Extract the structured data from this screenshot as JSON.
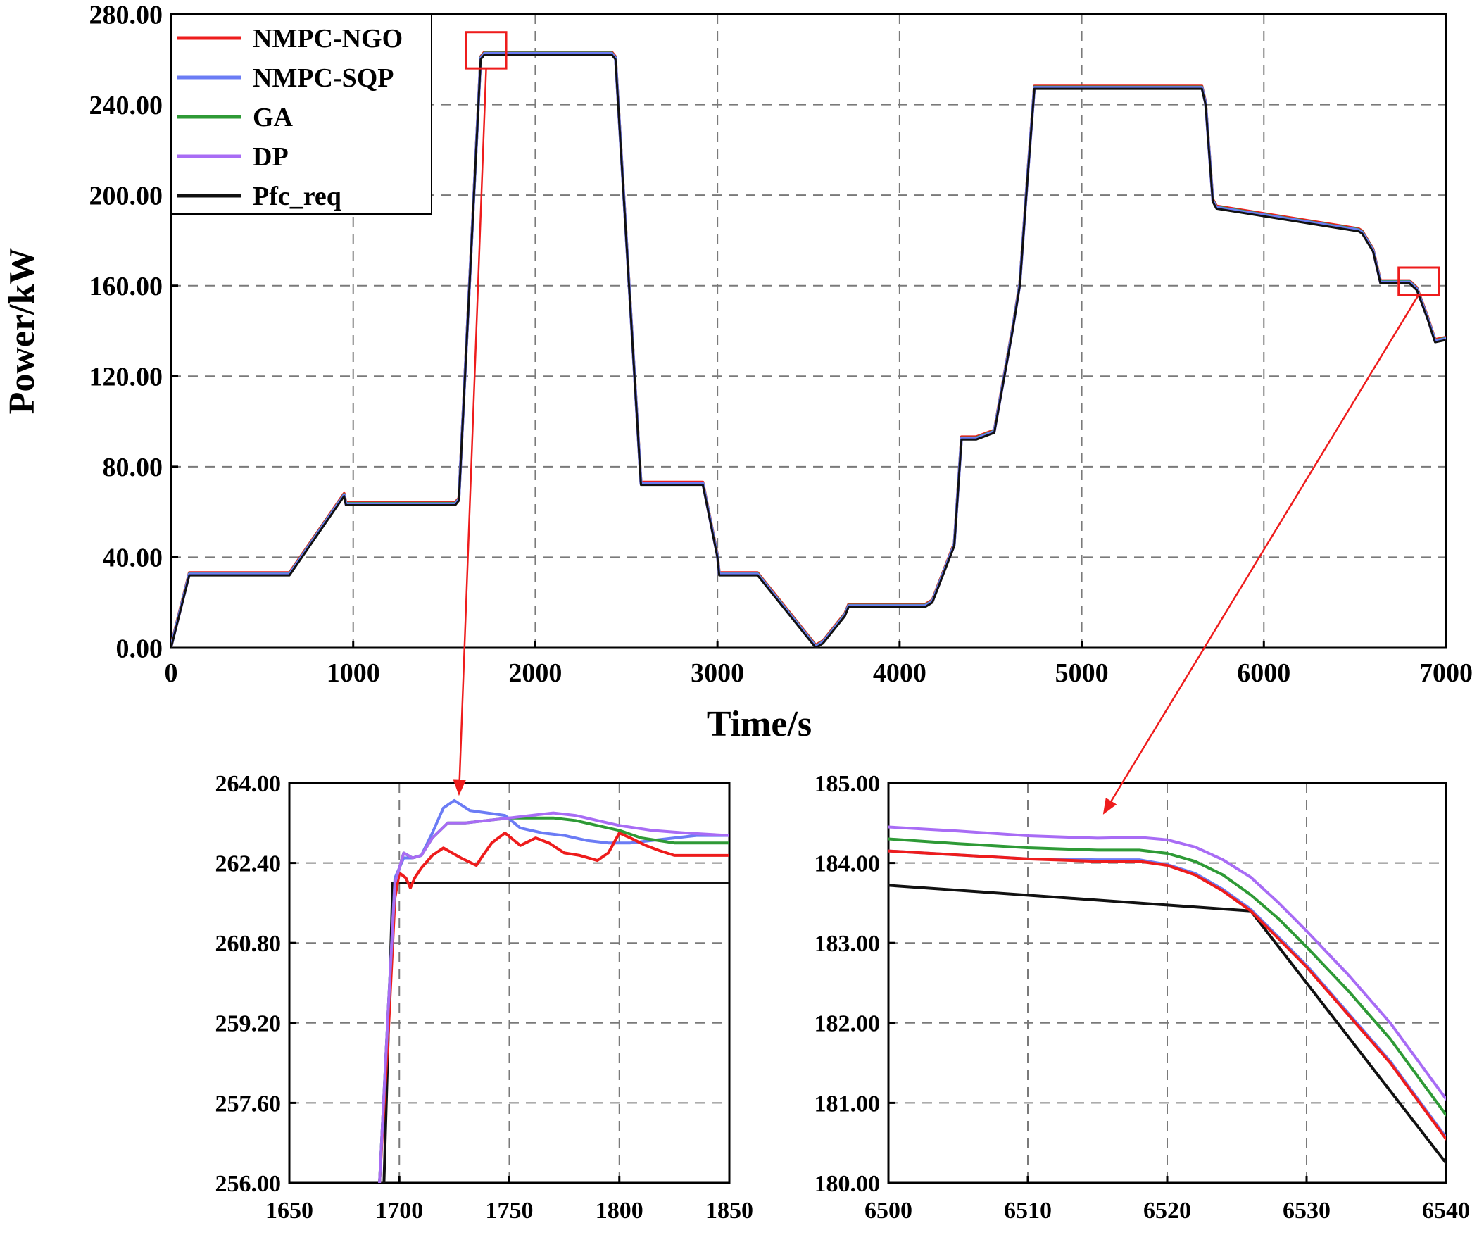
{
  "chart_data": [
    {
      "id": "main",
      "type": "line",
      "xlabel": "Time/s",
      "ylabel": "Power/kW",
      "xlim": [
        0,
        7000
      ],
      "ylim": [
        0,
        280
      ],
      "x_ticks": [
        "0",
        "1000",
        "2000",
        "3000",
        "4000",
        "5000",
        "6000",
        "7000"
      ],
      "y_ticks": [
        "0.00",
        "40.00",
        "80.00",
        "120.00",
        "160.00",
        "200.00",
        "240.00",
        "280.00"
      ],
      "grid": true,
      "legend_position": "top-left",
      "series": [
        {
          "name": "NMPC-NGO",
          "color": "#ee1c1c"
        },
        {
          "name": "NMPC-SQP",
          "color": "#6b7cf5"
        },
        {
          "name": "GA",
          "color": "#2e9a36"
        },
        {
          "name": "DP",
          "color": "#a86cf5"
        },
        {
          "name": "Pfc_req",
          "color": "#111111"
        }
      ],
      "pfc_req": {
        "x": [
          0,
          100,
          650,
          950,
          960,
          1560,
          1580,
          1700,
          1720,
          2420,
          2440,
          2580,
          2600,
          2920,
          3000,
          3010,
          3220,
          3540,
          3580,
          3700,
          3720,
          4140,
          4180,
          4300,
          4340,
          4420,
          4520,
          4620,
          4660,
          4700,
          4740,
          5660,
          5680,
          5720,
          5740,
          6520,
          6540,
          6600,
          6640,
          6680,
          6800,
          6840,
          6900,
          6940,
          7000
        ],
        "y": [
          0,
          32,
          32,
          67,
          63,
          63,
          65,
          260,
          262,
          262,
          260,
          72,
          72,
          72,
          40,
          32,
          32,
          0,
          2,
          14,
          18,
          18,
          20,
          45,
          92,
          92,
          95,
          140,
          160,
          205,
          247,
          247,
          240,
          197,
          194,
          184,
          183,
          175,
          161,
          161,
          161,
          158,
          145,
          135,
          136
        ]
      },
      "zoom_boxes": [
        {
          "x": [
            1620,
            1840
          ],
          "y": [
            256,
            272
          ]
        },
        {
          "x": [
            6740,
            6960
          ],
          "y": [
            156,
            168
          ]
        }
      ]
    },
    {
      "id": "zoom1",
      "type": "line",
      "xlim": [
        1650,
        1850
      ],
      "ylim": [
        256,
        264
      ],
      "x_ticks": [
        "1650",
        "1700",
        "1750",
        "1800",
        "1850"
      ],
      "y_ticks": [
        "256.00",
        "257.60",
        "259.20",
        "260.80",
        "262.40",
        "264.00"
      ],
      "grid": true,
      "series": [
        {
          "name": "Pfc_req",
          "color": "#111111",
          "x": [
            1693,
            1697,
            1850
          ],
          "y": [
            256,
            262.0,
            262.0
          ]
        },
        {
          "name": "NMPC-NGO",
          "color": "#ee1c1c",
          "x": [
            1691,
            1695,
            1698,
            1700,
            1703,
            1705,
            1707,
            1710,
            1715,
            1720,
            1728,
            1735,
            1738,
            1742,
            1748,
            1755,
            1762,
            1768,
            1775,
            1782,
            1790,
            1795,
            1800,
            1805,
            1812,
            1818,
            1825,
            1832,
            1840,
            1850
          ],
          "y": [
            256,
            259,
            261.7,
            262.2,
            262.1,
            261.9,
            262.1,
            262.3,
            262.55,
            262.7,
            262.5,
            262.35,
            262.55,
            262.8,
            263.0,
            262.75,
            262.9,
            262.8,
            262.6,
            262.55,
            262.45,
            262.6,
            263.0,
            262.9,
            262.75,
            262.65,
            262.55,
            262.55,
            262.55,
            262.55
          ]
        },
        {
          "name": "NMPC-SQP",
          "color": "#6b7cf5",
          "x": [
            1691,
            1695,
            1698,
            1702,
            1706,
            1710,
            1715,
            1720,
            1725,
            1732,
            1740,
            1748,
            1755,
            1765,
            1775,
            1785,
            1795,
            1805,
            1815,
            1825,
            1835,
            1850
          ],
          "y": [
            256,
            259.5,
            262.1,
            262.5,
            262.5,
            262.55,
            263.0,
            263.5,
            263.65,
            263.45,
            263.4,
            263.35,
            263.1,
            263.0,
            262.95,
            262.85,
            262.8,
            262.8,
            262.85,
            262.9,
            262.95,
            262.95
          ]
        },
        {
          "name": "GA",
          "color": "#2e9a36",
          "x": [
            1691,
            1695,
            1698,
            1702,
            1706,
            1710,
            1715,
            1722,
            1730,
            1740,
            1750,
            1760,
            1770,
            1780,
            1790,
            1800,
            1810,
            1825,
            1850
          ],
          "y": [
            256,
            259.5,
            262.0,
            262.6,
            262.5,
            262.55,
            262.9,
            263.2,
            263.2,
            263.25,
            263.3,
            263.3,
            263.3,
            263.25,
            263.15,
            263.05,
            262.9,
            262.8,
            262.8
          ]
        },
        {
          "name": "DP",
          "color": "#a86cf5",
          "x": [
            1691,
            1695,
            1698,
            1702,
            1706,
            1710,
            1715,
            1722,
            1730,
            1740,
            1750,
            1760,
            1770,
            1780,
            1790,
            1800,
            1815,
            1830,
            1850
          ],
          "y": [
            256,
            259.5,
            262.0,
            262.6,
            262.5,
            262.55,
            262.9,
            263.2,
            263.2,
            263.25,
            263.3,
            263.35,
            263.4,
            263.35,
            263.25,
            263.15,
            263.05,
            263.0,
            262.95
          ]
        }
      ]
    },
    {
      "id": "zoom2",
      "type": "line",
      "xlim": [
        6500,
        6540
      ],
      "ylim": [
        180,
        185
      ],
      "x_ticks": [
        "6500",
        "6510",
        "6520",
        "6530",
        "6540"
      ],
      "y_ticks": [
        "180.00",
        "181.00",
        "182.00",
        "183.00",
        "184.00",
        "185.00"
      ],
      "grid": true,
      "series": [
        {
          "name": "Pfc_req",
          "color": "#111111",
          "x": [
            6500,
            6526,
            6540
          ],
          "y": [
            183.72,
            183.4,
            180.25
          ]
        },
        {
          "name": "NMPC-NGO",
          "color": "#ee1c1c",
          "x": [
            6500,
            6505,
            6510,
            6515,
            6518,
            6520,
            6522,
            6524,
            6526,
            6528,
            6530,
            6533,
            6536,
            6540
          ],
          "y": [
            184.15,
            184.1,
            184.05,
            184.02,
            184.02,
            183.97,
            183.85,
            183.65,
            183.4,
            183.05,
            182.7,
            182.1,
            181.5,
            180.55
          ]
        },
        {
          "name": "NMPC-SQP",
          "color": "#6b7cf5",
          "x": [
            6500,
            6505,
            6510,
            6515,
            6518,
            6520,
            6522,
            6524,
            6526,
            6528,
            6530,
            6533,
            6536,
            6540
          ],
          "y": [
            184.15,
            184.1,
            184.05,
            184.04,
            184.04,
            183.98,
            183.87,
            183.67,
            183.42,
            183.07,
            182.72,
            182.12,
            181.52,
            180.57
          ]
        },
        {
          "name": "GA",
          "color": "#2e9a36",
          "x": [
            6500,
            6505,
            6510,
            6515,
            6518,
            6520,
            6522,
            6524,
            6526,
            6528,
            6530,
            6533,
            6536,
            6540
          ],
          "y": [
            184.3,
            184.24,
            184.19,
            184.16,
            184.16,
            184.12,
            184.02,
            183.85,
            183.6,
            183.3,
            182.95,
            182.4,
            181.8,
            180.85
          ]
        },
        {
          "name": "DP",
          "color": "#a86cf5",
          "x": [
            6500,
            6505,
            6510,
            6515,
            6518,
            6520,
            6522,
            6524,
            6526,
            6528,
            6530,
            6533,
            6536,
            6540
          ],
          "y": [
            184.45,
            184.4,
            184.34,
            184.31,
            184.32,
            184.29,
            184.2,
            184.04,
            183.82,
            183.5,
            183.15,
            182.6,
            182.0,
            181.05
          ]
        }
      ]
    }
  ]
}
